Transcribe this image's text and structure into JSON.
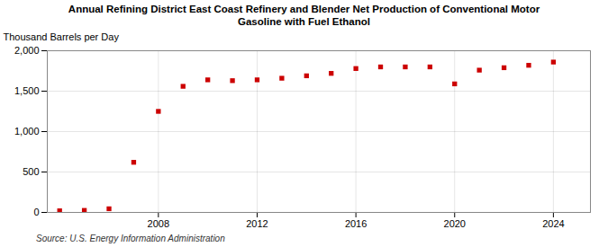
{
  "chart_data": {
    "type": "scatter",
    "title": "Annual Refining District East Coast Refinery and Blender Net Production of Conventional Motor\nGasoline with Fuel Ethanol",
    "ylabel": "Thousand Barrels per Day",
    "annotation": "Source: U.S. Energy Information Administration",
    "x": [
      2004,
      2005,
      2006,
      2007,
      2008,
      2009,
      2010,
      2011,
      2012,
      2013,
      2014,
      2015,
      2016,
      2017,
      2018,
      2019,
      2020,
      2021,
      2022,
      2023,
      2024
    ],
    "values": [
      20,
      25,
      45,
      620,
      1250,
      1560,
      1640,
      1630,
      1640,
      1660,
      1690,
      1720,
      1780,
      1800,
      1800,
      1800,
      1590,
      1760,
      1790,
      1820,
      1860
    ],
    "color": "#cc0000",
    "marker": "square",
    "grid": true,
    "xlim": [
      2003.5,
      2025.5
    ],
    "xticks": [
      2008,
      2012,
      2016,
      2020,
      2024
    ],
    "ylim": [
      0,
      2000
    ],
    "yticks": [
      0,
      500,
      {
        "value": 1000,
        "label": "1,000"
      },
      {
        "value": 1500,
        "label": "1,500"
      },
      {
        "value": 2000,
        "label": "2,000"
      }
    ]
  }
}
